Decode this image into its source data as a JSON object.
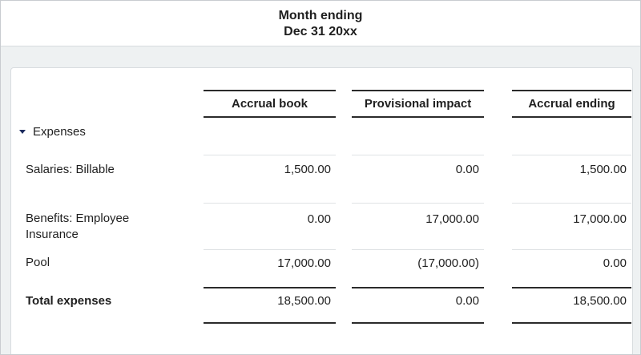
{
  "header": {
    "title_line1": "Month ending",
    "title_line2": "Dec 31 20xx"
  },
  "table": {
    "columns": [
      "Accrual book",
      "Provisional impact",
      "Accrual ending"
    ],
    "group": {
      "label": "Expenses"
    },
    "rows": [
      {
        "label": "Salaries: Billable",
        "values": [
          "1,500.00",
          "0.00",
          "1,500.00"
        ]
      },
      {
        "label": "Benefits: Employee Insurance",
        "values": [
          "0.00",
          "17,000.00",
          "17,000.00"
        ]
      },
      {
        "label": "Pool",
        "values": [
          "17,000.00",
          "(17,000.00)",
          "0.00"
        ]
      }
    ],
    "total": {
      "label": "Total expenses",
      "values": [
        "18,500.00",
        "0.00",
        "18,500.00"
      ]
    }
  },
  "icons": {
    "expenses_toggle": "caret-down-icon"
  },
  "colors": {
    "page_bg": "#eef1f2",
    "line_dark": "#2b2b2b",
    "line_light": "#dfe3e5",
    "accent_caret": "#1c2b5e",
    "border_soft": "#d8dcdf",
    "outer_border": "#c9ccd0",
    "text": "#1f1f1f"
  }
}
